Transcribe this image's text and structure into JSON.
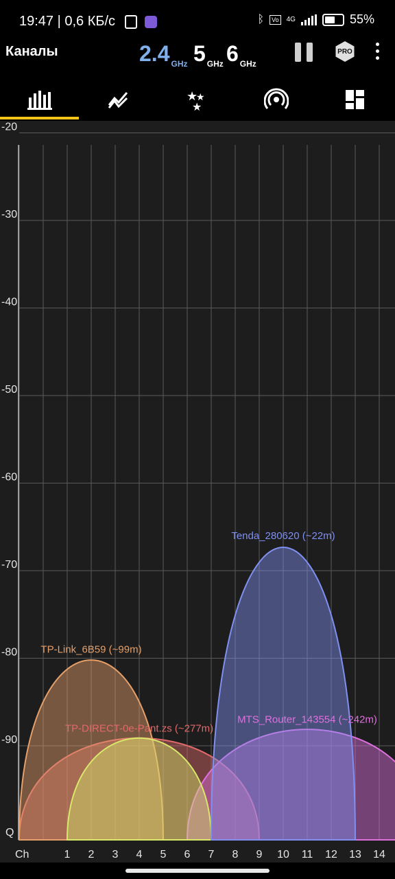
{
  "status_bar": {
    "time_speed": "19:47 | 0,6 КБ/с",
    "network": "4G",
    "battery": "55%"
  },
  "app_bar": {
    "title": "Каналы",
    "bands": [
      {
        "value": "2.4",
        "unit": "GHz",
        "active": true
      },
      {
        "value": "5",
        "unit": "GHz",
        "active": false
      },
      {
        "value": "6",
        "unit": "GHz",
        "active": false
      }
    ],
    "pro_label": "PRO"
  },
  "tabs": [
    {
      "name": "channel-graph",
      "icon": "bar-chart-icon",
      "active": true
    },
    {
      "name": "time-graph",
      "icon": "time-graph-icon",
      "active": false
    },
    {
      "name": "channel-rating",
      "icon": "stars-icon",
      "active": false
    },
    {
      "name": "access-points",
      "icon": "wifi-signal-icon",
      "active": false
    },
    {
      "name": "dashboard",
      "icon": "dashboard-icon",
      "active": false
    }
  ],
  "colors": {
    "accent": "#f5c518",
    "graph_bg": "#1d1d1d",
    "grid": "#5a5a5a"
  },
  "chart_data": {
    "type": "area",
    "y_labels": [
      "-20",
      "-30",
      "-40",
      "-50",
      "-60",
      "-70",
      "-80",
      "-90",
      "Q"
    ],
    "y_values": [
      -20,
      -30,
      -40,
      -50,
      -60,
      -70,
      -80,
      -90
    ],
    "ylim": [
      -100,
      -20
    ],
    "x_axis_label": "Ch",
    "x_labels": [
      "1",
      "2",
      "3",
      "4",
      "5",
      "6",
      "7",
      "8",
      "9",
      "10",
      "11",
      "12",
      "13",
      "14"
    ],
    "grid": true,
    "networks": [
      {
        "label": "TP-Link_6B59 (~99m)",
        "center": 2,
        "left": -1,
        "right": 5,
        "top": 0.4,
        "signal": -80,
        "color": "#e6a06a"
      },
      {
        "label": "TP-DIRECT-0e-Pant.zs (~277m)",
        "center": 4,
        "left": -1,
        "right": 9,
        "top": -3.2,
        "signal": -89,
        "color": "#e06a6a"
      },
      {
        "label": "",
        "center": 4,
        "left": 1,
        "right": 7,
        "top": -2.5,
        "signal": -89,
        "color": "#d8e86a"
      },
      {
        "label": "Tenda_280620 (~22m)",
        "center": 10,
        "left": 7,
        "right": 13,
        "top": -2.8,
        "signal": -67,
        "color": "#8090f0"
      },
      {
        "label": "MTS_Router_143554 (~242m)",
        "center": 11,
        "left": 6,
        "right": 16,
        "top": -2.8,
        "signal": -88,
        "color": "#e070e0"
      }
    ]
  }
}
